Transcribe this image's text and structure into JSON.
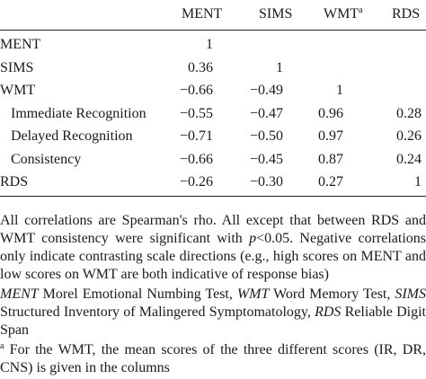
{
  "table": {
    "headers": [
      "MENT",
      "SIMS",
      "WMT",
      "RDS"
    ],
    "wmt_header_sup": "a",
    "rows": [
      {
        "label": "MENT",
        "indent": false,
        "values": [
          "1",
          "",
          "",
          ""
        ]
      },
      {
        "label": "SIMS",
        "indent": false,
        "values": [
          "0.36",
          "1",
          "",
          ""
        ]
      },
      {
        "label": "WMT",
        "indent": false,
        "values": [
          "−0.66",
          "−0.49",
          "1",
          ""
        ]
      },
      {
        "label": "Immediate Recognition",
        "indent": true,
        "values": [
          "−0.55",
          "−0.47",
          "0.96",
          "0.28"
        ]
      },
      {
        "label": "Delayed Recognition",
        "indent": true,
        "values": [
          "−0.71",
          "−0.50",
          "0.97",
          "0.26"
        ]
      },
      {
        "label": "Consistency",
        "indent": true,
        "values": [
          "−0.66",
          "−0.45",
          "0.87",
          "0.24"
        ]
      },
      {
        "label": "RDS",
        "indent": false,
        "values": [
          "−0.26",
          "−0.30",
          "0.27",
          "1"
        ]
      }
    ]
  },
  "notes": {
    "note1_a": "All correlations are Spearman's rho. All except that between RDS and WMT consistency were significant with ",
    "note1_p": "p",
    "note1_b": "<0.05. Negative correlations only indicate contrasting scale directions (e.g., high scores on MENT and low scores on WMT are both indicative of response bias)",
    "abbr_ment": "MENT",
    "abbr_ment_text": " Morel Emotional Numbing Test, ",
    "abbr_wmt": "WMT",
    "abbr_wmt_text": " Word Memory Test, ",
    "abbr_sims": "SIMS",
    "abbr_sims_text": " Structured Inventory of Malingered Symptomatology, ",
    "abbr_rds": "RDS",
    "abbr_rds_text": " Reliable Digit Span",
    "footnote_sup": "a",
    "footnote_text": " For the WMT, the mean scores of the three different scores (IR, DR, CNS) is given in the columns"
  }
}
